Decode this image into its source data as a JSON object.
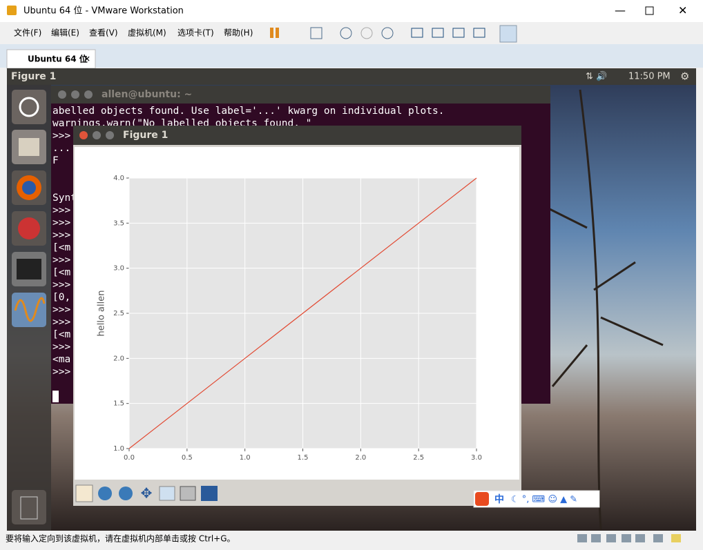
{
  "window": {
    "title": "Ubuntu 64 位 - VMware Workstation",
    "menu": [
      "文件(F)",
      "编辑(E)",
      "查看(V)",
      "虚拟机(M)",
      "选项卡(T)",
      "帮助(H)"
    ],
    "tab": "Ubuntu 64 位",
    "status": "要将输入定向到该虚拟机，请在虚拟机内部单击或按 Ctrl+G。"
  },
  "ubuntu": {
    "active_app": "Figure 1",
    "clock": "11:50 PM"
  },
  "terminal": {
    "title": "allen@ubuntu: ~",
    "lines": [
      "abelled objects found. Use label='...' kwarg on individual plots.",
      "  warnings.warn(\"No labelled objects found. \"",
      ">>> ",
      "... ",
      "  F",
      "Synt",
      ">>>",
      ">>>",
      ">>>",
      "[<m",
      ">>>",
      "[<m",
      ">>>",
      "[0,",
      ">>>",
      ">>>",
      "[<m",
      ">>>",
      "<ma",
      ">>>"
    ]
  },
  "figure_window": {
    "title": "Figure 1"
  },
  "ime": {
    "mode": "中"
  },
  "chart_data": {
    "type": "line",
    "ylabel": "hello allen",
    "x": [
      0,
      1,
      2,
      3
    ],
    "series": [
      {
        "color": "#e24a33",
        "values": [
          1,
          2,
          3,
          4
        ]
      }
    ],
    "xlim": [
      0,
      3
    ],
    "ylim": [
      1,
      4
    ],
    "xticks": [
      {
        "value": 0,
        "label": "0.0"
      },
      {
        "value": 0.5,
        "label": "0.5"
      },
      {
        "value": 1,
        "label": "1.0"
      },
      {
        "value": 1.5,
        "label": "1.5"
      },
      {
        "value": 2,
        "label": "2.0"
      },
      {
        "value": 2.5,
        "label": "2.5"
      },
      {
        "value": 3,
        "label": "3.0"
      }
    ],
    "yticks": [
      {
        "value": 1,
        "label": "1.0"
      },
      {
        "value": 1.5,
        "label": "1.5"
      },
      {
        "value": 2,
        "label": "2.0"
      },
      {
        "value": 2.5,
        "label": "2.5"
      },
      {
        "value": 3,
        "label": "3.0"
      },
      {
        "value": 3.5,
        "label": "3.5"
      },
      {
        "value": 4,
        "label": "4.0"
      }
    ],
    "grid": true,
    "background": "#e5e5e5"
  }
}
